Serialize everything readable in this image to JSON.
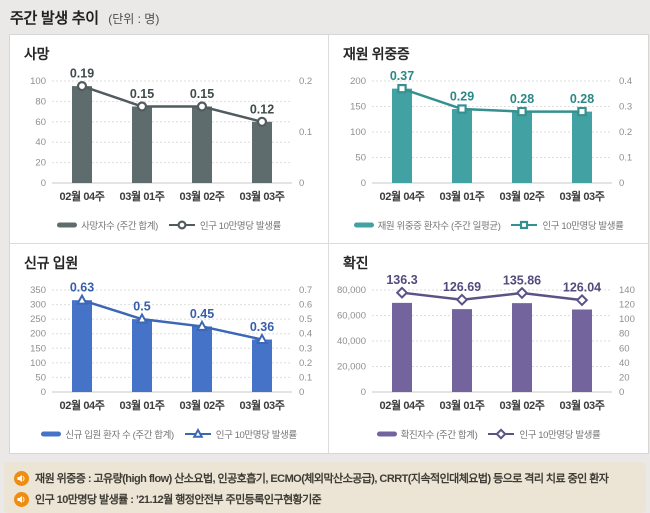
{
  "page": {
    "title": "주간 발생 추이",
    "unit_label": "(단위 : 명)"
  },
  "colors": {
    "page_bg": "#eae9e7",
    "panel_bg": "#ffffff",
    "panel_border": "#d6d6d4",
    "grid_line": "#dedede",
    "axis_baseline": "#c9c9c9",
    "y_tick_text": "#8f8f8f",
    "x_tick_text": "#3c3c3c",
    "footer_bg": "#ece5d6",
    "footer_icon_bg": "#ef8d12",
    "footnote_text": "#3e3c34"
  },
  "chart_data": [
    {
      "type": "bar+line",
      "title": "사망",
      "categories": [
        "02월 04주",
        "03월 01주",
        "03월 02주",
        "03월 03주"
      ],
      "series": [
        {
          "name": "사망자수 (주간 합계)",
          "type": "bar",
          "axis": "left",
          "values": [
            95,
            75,
            75,
            60
          ]
        },
        {
          "name": "인구 10만명당 발생률",
          "type": "line",
          "axis": "right",
          "marker": "circle",
          "values": [
            0.19,
            0.15,
            0.15,
            0.12
          ],
          "labels": [
            "0.19",
            "0.15",
            "0.15",
            "0.12"
          ]
        }
      ],
      "left_axis": {
        "min": 0,
        "max": 100,
        "ticks": [
          0,
          20,
          40,
          60,
          80,
          100
        ]
      },
      "right_axis": {
        "min": 0,
        "max": 0.2,
        "ticks": [
          0,
          0.1,
          0.2
        ]
      },
      "grid": true,
      "legend_position": "bottom",
      "bar_color": "#5e6c6e",
      "line_color": "#515c5e",
      "label_color": "#404b4d"
    },
    {
      "type": "bar+line",
      "title": "재원 위중증",
      "categories": [
        "02월 04주",
        "03월 01주",
        "03월 02주",
        "03월 03주"
      ],
      "series": [
        {
          "name": "재원 위중증 환자수 (주간 일평균)",
          "type": "bar",
          "axis": "left",
          "values": [
            185,
            145,
            140,
            140
          ]
        },
        {
          "name": "인구 10만명당 발생률",
          "type": "line",
          "axis": "right",
          "marker": "square",
          "values": [
            0.37,
            0.29,
            0.28,
            0.28
          ],
          "labels": [
            "0.37",
            "0.29",
            "0.28",
            "0.28"
          ]
        }
      ],
      "left_axis": {
        "min": 0,
        "max": 200,
        "ticks": [
          0,
          50,
          100,
          150,
          200
        ]
      },
      "right_axis": {
        "min": 0,
        "max": 0.4,
        "ticks": [
          0,
          0.1,
          0.2,
          0.3,
          0.4
        ]
      },
      "grid": true,
      "legend_position": "bottom",
      "bar_color": "#42a1a3",
      "line_color": "#36908f",
      "label_color": "#2b8886"
    },
    {
      "type": "bar+line",
      "title": "신규 입원",
      "categories": [
        "02월 04주",
        "03월 01주",
        "03월 02주",
        "03월 03주"
      ],
      "series": [
        {
          "name": "신규 입원 환자 수 (주간 합계)",
          "type": "bar",
          "axis": "left",
          "values": [
            315,
            250,
            225,
            180
          ]
        },
        {
          "name": "인구 10만명당 발생률",
          "type": "line",
          "axis": "right",
          "marker": "triangle",
          "values": [
            0.63,
            0.5,
            0.45,
            0.36
          ],
          "labels": [
            "0.63",
            "0.5",
            "0.45",
            "0.36"
          ]
        }
      ],
      "left_axis": {
        "min": 0,
        "max": 350,
        "ticks": [
          0,
          50,
          100,
          150,
          200,
          250,
          300,
          350
        ]
      },
      "right_axis": {
        "min": 0,
        "max": 0.7,
        "ticks": [
          0,
          0.1,
          0.2,
          0.3,
          0.4,
          0.5,
          0.6,
          0.7
        ]
      },
      "grid": true,
      "legend_position": "bottom",
      "bar_color": "#4573c7",
      "line_color": "#3c67b5",
      "label_color": "#365fab"
    },
    {
      "type": "bar+line",
      "title": "확진",
      "categories": [
        "02월 04주",
        "03월 01주",
        "03월 02주",
        "03월 03주"
      ],
      "series": [
        {
          "name": "확진자수 (주간 합계)",
          "type": "bar",
          "axis": "left",
          "values": [
            69900,
            65000,
            69700,
            64700
          ]
        },
        {
          "name": "인구 10만명당 발생률",
          "type": "line",
          "axis": "right",
          "marker": "diamond",
          "values": [
            136.3,
            126.69,
            135.86,
            126.04
          ],
          "labels": [
            "136.3",
            "126.69",
            "135.86",
            "126.04"
          ]
        }
      ],
      "left_axis": {
        "min": 0,
        "max": 80000,
        "ticks": [
          0,
          20000,
          40000,
          60000,
          80000
        ]
      },
      "right_axis": {
        "min": 0,
        "max": 140,
        "ticks": [
          0,
          20,
          40,
          60,
          80,
          100,
          120,
          140
        ]
      },
      "grid": true,
      "legend_position": "bottom",
      "bar_color": "#73649e",
      "line_color": "#5d5285",
      "label_color": "#544a7c"
    }
  ],
  "footnotes": [
    {
      "icon": "speaker-icon",
      "text": "재원 위중증 : 고유량(high flow) 산소요법, 인공호흡기, ECMO(체외막산소공급), CRRT(지속적인대체요법) 등으로 격리 치료 중인 환자"
    },
    {
      "icon": "speaker-icon",
      "text": "인구 10만명당 발생률 : ’21.12월 행정안전부 주민등록인구현황기준"
    }
  ]
}
